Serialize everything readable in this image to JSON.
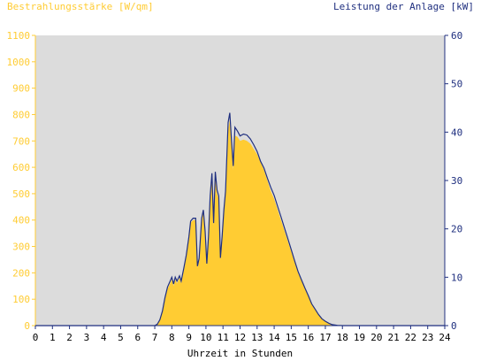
{
  "colors": {
    "irradiance": "#FFCC33",
    "power": "#1F2F7F",
    "plot_background": "#DCDCDC",
    "x_labels": "#000000"
  },
  "chart_data": {
    "type": "area",
    "title_left": "Bestrahlungsstärke [W/qm]",
    "title_right": "Leistung der Anlage [kW]",
    "xlabel": "Uhrzeit in Stunden",
    "x_ticks": [
      "0",
      "1",
      "2",
      "3",
      "4",
      "5",
      "6",
      "7",
      "8",
      "9",
      "10",
      "11",
      "12",
      "13",
      "14",
      "15",
      "16",
      "17",
      "18",
      "19",
      "20",
      "21",
      "22",
      "23",
      "24"
    ],
    "xlim": [
      0,
      24
    ],
    "y_left": {
      "label": "Bestrahlungsstärke [W/qm]",
      "ticks": [
        "0",
        "100",
        "200",
        "300",
        "400",
        "500",
        "600",
        "700",
        "800",
        "900",
        "1000",
        "1100"
      ],
      "ylim": [
        0,
        1100
      ]
    },
    "y_right": {
      "label": "Leistung der Anlage [kW]",
      "ticks": [
        "0",
        "10",
        "20",
        "30",
        "40",
        "50",
        "60"
      ],
      "ylim": [
        0,
        60
      ]
    },
    "series": [
      {
        "name": "Bestrahlungsstärke [W/qm]",
        "axis": "left",
        "style": "filled-area",
        "points": [
          [
            0,
            0
          ],
          [
            7.0,
            0
          ],
          [
            7.15,
            5
          ],
          [
            7.3,
            20
          ],
          [
            7.45,
            50
          ],
          [
            7.6,
            100
          ],
          [
            7.75,
            140
          ],
          [
            7.9,
            160
          ],
          [
            8.0,
            175
          ],
          [
            8.1,
            150
          ],
          [
            8.2,
            175
          ],
          [
            8.3,
            160
          ],
          [
            8.45,
            180
          ],
          [
            8.55,
            160
          ],
          [
            8.7,
            210
          ],
          [
            8.85,
            260
          ],
          [
            9.0,
            330
          ],
          [
            9.1,
            390
          ],
          [
            9.25,
            400
          ],
          [
            9.4,
            400
          ],
          [
            9.5,
            220
          ],
          [
            9.6,
            250
          ],
          [
            9.75,
            400
          ],
          [
            9.85,
            430
          ],
          [
            9.95,
            350
          ],
          [
            10.05,
            230
          ],
          [
            10.15,
            330
          ],
          [
            10.25,
            480
          ],
          [
            10.35,
            560
          ],
          [
            10.45,
            380
          ],
          [
            10.55,
            560
          ],
          [
            10.65,
            500
          ],
          [
            10.75,
            480
          ],
          [
            10.85,
            250
          ],
          [
            10.95,
            330
          ],
          [
            11.05,
            430
          ],
          [
            11.15,
            500
          ],
          [
            11.3,
            740
          ],
          [
            11.4,
            780
          ],
          [
            11.5,
            680
          ],
          [
            11.6,
            590
          ],
          [
            11.7,
            720
          ],
          [
            11.85,
            715
          ],
          [
            12.0,
            700
          ],
          [
            12.2,
            705
          ],
          [
            12.4,
            700
          ],
          [
            12.6,
            690
          ],
          [
            12.8,
            670
          ],
          [
            13.0,
            650
          ],
          [
            13.2,
            620
          ],
          [
            13.4,
            590
          ],
          [
            13.6,
            550
          ],
          [
            13.8,
            510
          ],
          [
            14.0,
            480
          ],
          [
            14.2,
            440
          ],
          [
            14.4,
            400
          ],
          [
            14.6,
            360
          ],
          [
            14.8,
            320
          ],
          [
            15.0,
            280
          ],
          [
            15.2,
            240
          ],
          [
            15.4,
            200
          ],
          [
            15.6,
            170
          ],
          [
            15.8,
            140
          ],
          [
            16.0,
            110
          ],
          [
            16.2,
            80
          ],
          [
            16.4,
            60
          ],
          [
            16.6,
            40
          ],
          [
            16.8,
            25
          ],
          [
            17.0,
            15
          ],
          [
            17.2,
            8
          ],
          [
            17.4,
            4
          ],
          [
            17.7,
            1
          ],
          [
            18.0,
            0
          ],
          [
            24,
            0
          ]
        ]
      },
      {
        "name": "Leistung der Anlage [kW]",
        "axis": "right",
        "style": "line",
        "points": [
          [
            0,
            0
          ],
          [
            7.0,
            0
          ],
          [
            7.15,
            0.3
          ],
          [
            7.3,
            1.2
          ],
          [
            7.45,
            3.0
          ],
          [
            7.6,
            5.8
          ],
          [
            7.75,
            8.0
          ],
          [
            7.9,
            9.2
          ],
          [
            8.0,
            10.0
          ],
          [
            8.1,
            8.6
          ],
          [
            8.2,
            10.0
          ],
          [
            8.3,
            9.2
          ],
          [
            8.45,
            10.3
          ],
          [
            8.55,
            9.2
          ],
          [
            8.7,
            11.8
          ],
          [
            8.85,
            14.6
          ],
          [
            9.0,
            18.3
          ],
          [
            9.1,
            21.6
          ],
          [
            9.25,
            22.2
          ],
          [
            9.4,
            22.2
          ],
          [
            9.5,
            12.3
          ],
          [
            9.6,
            13.9
          ],
          [
            9.75,
            22.2
          ],
          [
            9.85,
            23.9
          ],
          [
            9.95,
            19.5
          ],
          [
            10.05,
            12.8
          ],
          [
            10.15,
            18.4
          ],
          [
            10.25,
            26.8
          ],
          [
            10.35,
            31.5
          ],
          [
            10.45,
            21.2
          ],
          [
            10.55,
            31.8
          ],
          [
            10.65,
            28.0
          ],
          [
            10.75,
            26.8
          ],
          [
            10.85,
            14.0
          ],
          [
            10.95,
            18.4
          ],
          [
            11.05,
            23.9
          ],
          [
            11.15,
            27.8
          ],
          [
            11.3,
            42.0
          ],
          [
            11.4,
            44.0
          ],
          [
            11.5,
            38.0
          ],
          [
            11.6,
            33.0
          ],
          [
            11.7,
            41.0
          ],
          [
            11.85,
            40.2
          ],
          [
            12.0,
            39.2
          ],
          [
            12.2,
            39.6
          ],
          [
            12.4,
            39.4
          ],
          [
            12.6,
            38.6
          ],
          [
            12.8,
            37.4
          ],
          [
            13.0,
            36.0
          ],
          [
            13.2,
            34.0
          ],
          [
            13.4,
            32.6
          ],
          [
            13.6,
            30.5
          ],
          [
            13.8,
            28.6
          ],
          [
            14.0,
            26.9
          ],
          [
            14.2,
            24.7
          ],
          [
            14.4,
            22.5
          ],
          [
            14.6,
            20.2
          ],
          [
            14.8,
            18.0
          ],
          [
            15.0,
            15.7
          ],
          [
            15.2,
            13.4
          ],
          [
            15.4,
            11.2
          ],
          [
            15.6,
            9.5
          ],
          [
            15.8,
            7.8
          ],
          [
            16.0,
            6.2
          ],
          [
            16.2,
            4.5
          ],
          [
            16.4,
            3.4
          ],
          [
            16.6,
            2.3
          ],
          [
            16.8,
            1.4
          ],
          [
            17.0,
            0.9
          ],
          [
            17.2,
            0.5
          ],
          [
            17.4,
            0.2
          ],
          [
            17.7,
            0.05
          ],
          [
            18.0,
            0
          ],
          [
            24,
            0
          ]
        ]
      }
    ]
  }
}
